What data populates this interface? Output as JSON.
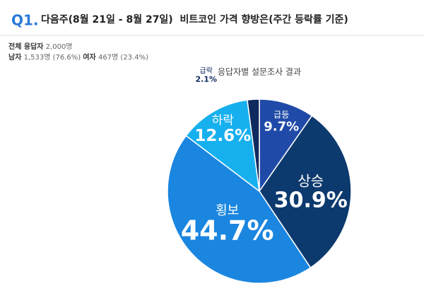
{
  "header": {
    "number": "Q1.",
    "title": "다음주(8월 21일 - 8월 27일)  비트코인 가격 향방은(주간 등락률 기준)",
    "total_label": "전체 응답자",
    "total_value": "2,000명",
    "male_label": "남자",
    "male_value": "1,533명 (76.6%)",
    "female_label": "여자",
    "female_value": "467명 (23.4%)"
  },
  "chart_data": {
    "type": "pie",
    "title": "응답자별 설문조사 결과",
    "categories": [
      "급등",
      "상승",
      "횡보",
      "하락",
      "급락"
    ],
    "values": [
      9.7,
      30.9,
      44.7,
      12.6,
      2.1
    ],
    "value_labels": [
      "9.7%",
      "30.9%",
      "44.7%",
      "12.6%",
      "2.1%"
    ],
    "colors": [
      "#1f4aa8",
      "#0d3a6e",
      "#1a86e0",
      "#17b0ef",
      "#0e2a5e"
    ]
  }
}
